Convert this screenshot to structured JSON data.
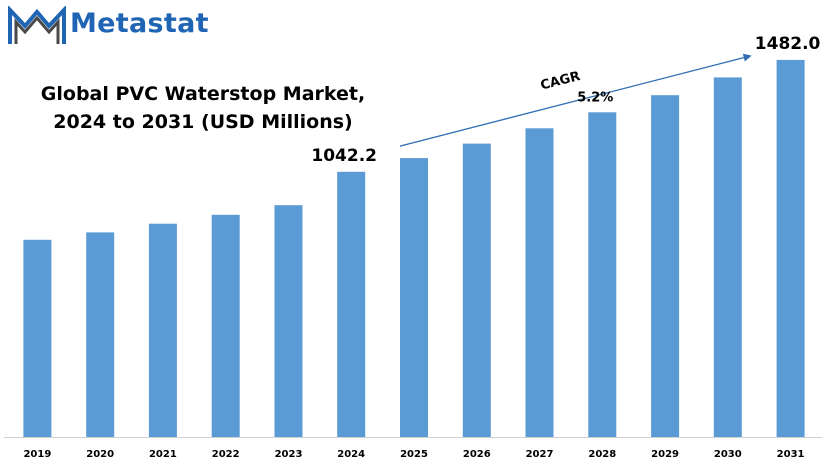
{
  "brand": {
    "name": "Metastat",
    "color": "#1f65b4",
    "icon": "metastat-m-logo-icon"
  },
  "chart_data": {
    "type": "bar",
    "title_lines": [
      "Global PVC Waterstop Market,",
      "2024 to 2031 (USD Millions)"
    ],
    "xlabel": "",
    "ylabel": "",
    "categories": [
      "2019",
      "2020",
      "2021",
      "2022",
      "2023",
      "2024",
      "2025",
      "2026",
      "2027",
      "2028",
      "2029",
      "2030",
      "2031"
    ],
    "values": [
      775,
      804,
      838,
      873,
      911,
      1042.2,
      1096,
      1153,
      1213,
      1276,
      1343,
      1413,
      1482.0
    ],
    "ylim": [
      0,
      1560
    ],
    "bar_color": "#5b9bd5",
    "labeled_points": [
      {
        "category": "2024",
        "label": "1042.2"
      },
      {
        "category": "2031",
        "label": "1482.0"
      }
    ],
    "annotation": {
      "label": "CAGR",
      "value": "5.2%",
      "from_category": "2025",
      "to_category": "2031",
      "arrow_color": "#2e6db4"
    },
    "grid": false,
    "legend": "none"
  }
}
